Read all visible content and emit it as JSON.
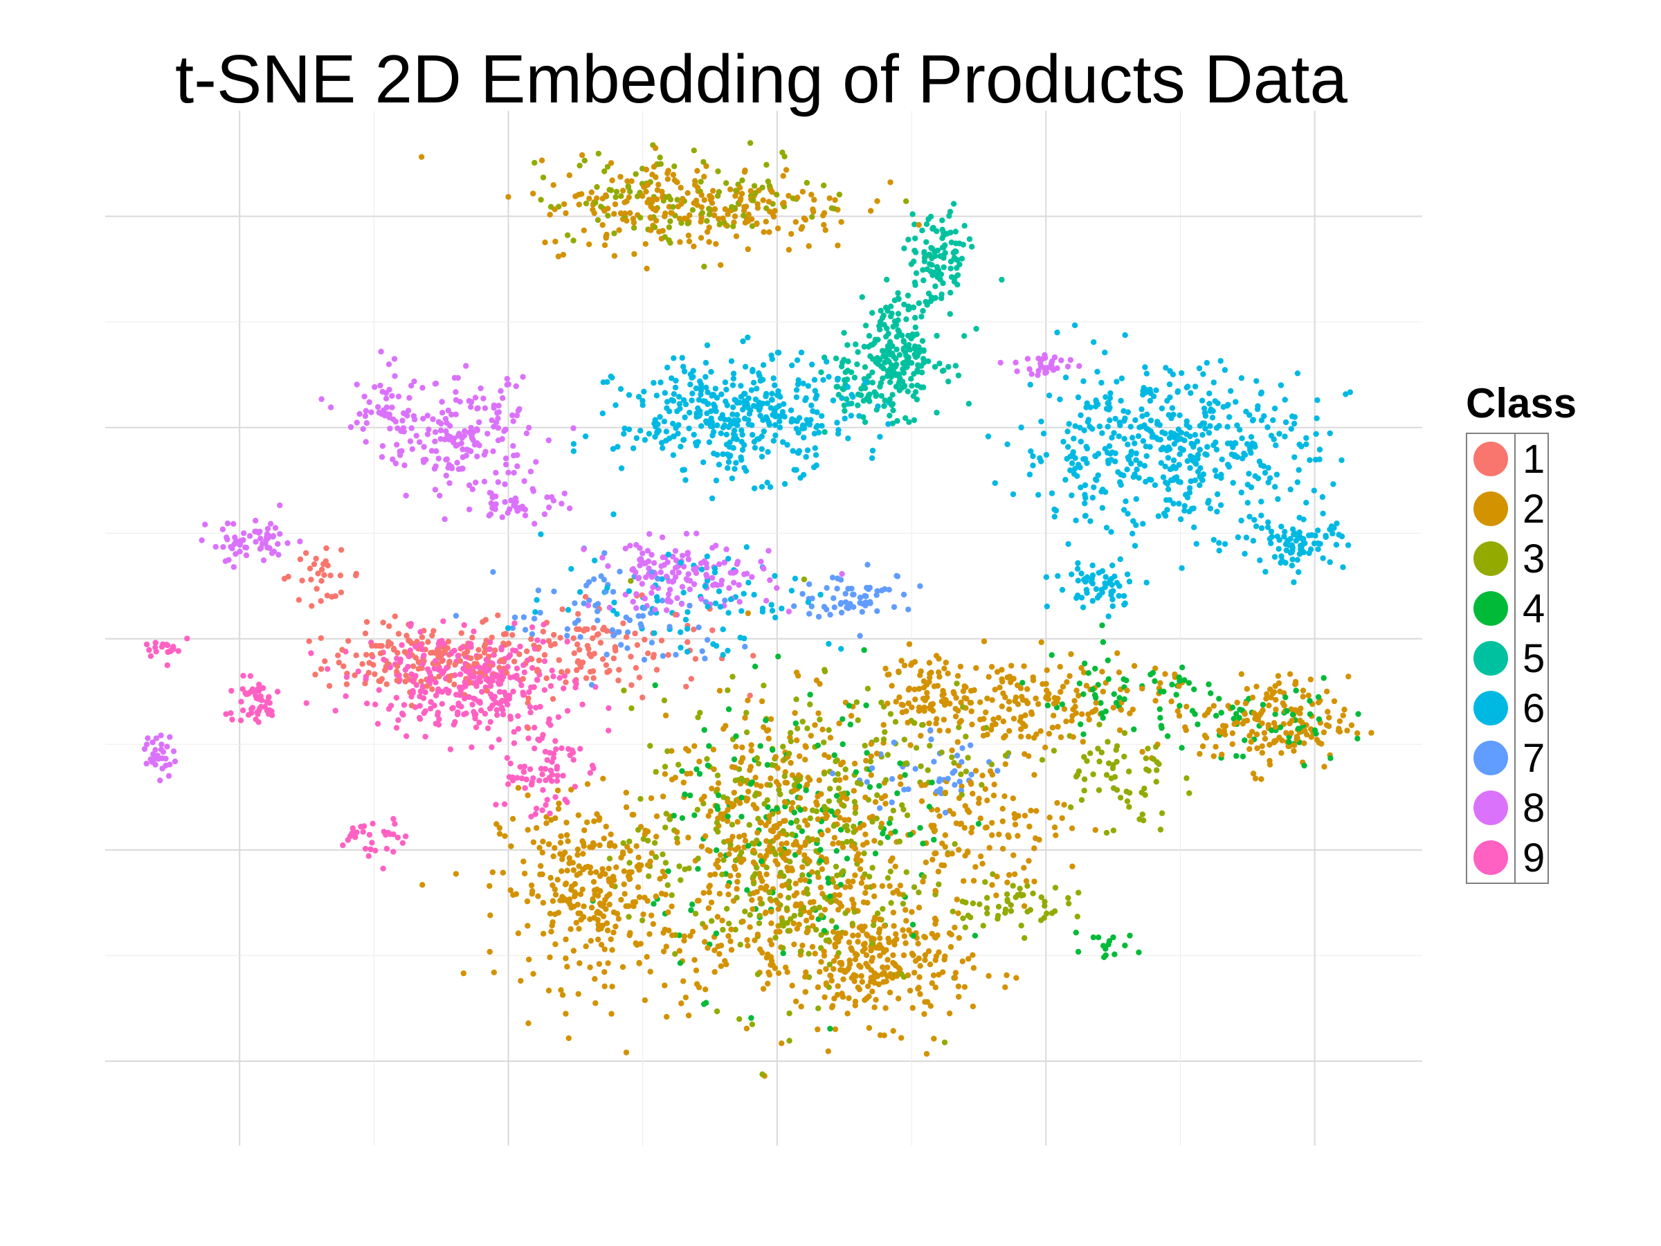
{
  "chart_data": {
    "type": "scatter",
    "title": "t-SNE 2D Embedding of Products Data",
    "xlabel": "",
    "ylabel": "",
    "xlim": [
      -50,
      48
    ],
    "ylim": [
      -48,
      50
    ],
    "grid": true,
    "legend_position": "right",
    "legend_title": "Class",
    "series": [
      {
        "name": "1",
        "color": "#F8766D",
        "clusters": [
          {
            "cx": -26,
            "cy": -2,
            "rx": 7,
            "ry": 3,
            "n": 160
          },
          {
            "cx": -14,
            "cy": -1,
            "rx": 8,
            "ry": 4,
            "n": 120
          },
          {
            "cx": -34,
            "cy": 6,
            "rx": 3,
            "ry": 2,
            "n": 30
          }
        ]
      },
      {
        "name": "2",
        "color": "#D39200",
        "clusters": [
          {
            "cx": 0,
            "cy": -21,
            "rx": 9,
            "ry": 13,
            "n": 520
          },
          {
            "cx": -14,
            "cy": -24,
            "rx": 6,
            "ry": 8,
            "n": 280
          },
          {
            "cx": 8,
            "cy": -31,
            "rx": 6,
            "ry": 5,
            "n": 220
          },
          {
            "cx": 18,
            "cy": -6,
            "rx": 10,
            "ry": 4,
            "n": 200
          },
          {
            "cx": 37,
            "cy": -8,
            "rx": 5,
            "ry": 4,
            "n": 160
          },
          {
            "cx": -6,
            "cy": 41,
            "rx": 11,
            "ry": 4,
            "n": 240
          },
          {
            "cx": 15,
            "cy": -18,
            "rx": 6,
            "ry": 6,
            "n": 120
          },
          {
            "cx": 11,
            "cy": -5,
            "rx": 3,
            "ry": 3,
            "n": 60
          }
        ]
      },
      {
        "name": "3",
        "color": "#93AA00",
        "clusters": [
          {
            "cx": 0,
            "cy": -20,
            "rx": 10,
            "ry": 13,
            "n": 300
          },
          {
            "cx": -6,
            "cy": 42,
            "rx": 11,
            "ry": 4,
            "n": 120
          },
          {
            "cx": 17,
            "cy": -25,
            "rx": 4,
            "ry": 2,
            "n": 50
          },
          {
            "cx": 25,
            "cy": -13,
            "rx": 4,
            "ry": 5,
            "n": 60
          },
          {
            "cx": 10,
            "cy": -10,
            "rx": 8,
            "ry": 6,
            "n": 60
          }
        ]
      },
      {
        "name": "4",
        "color": "#00BA38",
        "clusters": [
          {
            "cx": 2,
            "cy": -19,
            "rx": 10,
            "ry": 12,
            "n": 150
          },
          {
            "cx": 26,
            "cy": -6,
            "rx": 8,
            "ry": 4,
            "n": 60
          },
          {
            "cx": 37,
            "cy": -8,
            "rx": 5,
            "ry": 4,
            "n": 50
          },
          {
            "cx": 24,
            "cy": -29,
            "rx": 3,
            "ry": 1,
            "n": 15
          }
        ]
      },
      {
        "name": "5",
        "color": "#00C19F",
        "clusters": [
          {
            "cx": 9,
            "cy": 27,
            "rx": 3,
            "ry": 5,
            "n": 220
          },
          {
            "cx": 12,
            "cy": 36,
            "rx": 2,
            "ry": 4,
            "n": 100
          },
          {
            "cx": 6,
            "cy": 24,
            "rx": 2,
            "ry": 3,
            "n": 40
          }
        ]
      },
      {
        "name": "6",
        "color": "#00B9E3",
        "clusters": [
          {
            "cx": -3,
            "cy": 21,
            "rx": 8,
            "ry": 5,
            "n": 380
          },
          {
            "cx": 29,
            "cy": 18,
            "rx": 10,
            "ry": 7,
            "n": 480
          },
          {
            "cx": 39,
            "cy": 9,
            "rx": 3,
            "ry": 2,
            "n": 80
          },
          {
            "cx": 24,
            "cy": 5,
            "rx": 3,
            "ry": 2,
            "n": 60
          },
          {
            "cx": -6,
            "cy": 4,
            "rx": 10,
            "ry": 5,
            "n": 80
          }
        ]
      },
      {
        "name": "7",
        "color": "#619CFF",
        "clusters": [
          {
            "cx": 6,
            "cy": 4,
            "rx": 4,
            "ry": 2,
            "n": 60
          },
          {
            "cx": -12,
            "cy": 2,
            "rx": 8,
            "ry": 5,
            "n": 70
          },
          {
            "cx": 12,
            "cy": -13,
            "rx": 6,
            "ry": 3,
            "n": 40
          }
        ]
      },
      {
        "name": "8",
        "color": "#DB72FB",
        "clusters": [
          {
            "cx": -23,
            "cy": 19,
            "rx": 4,
            "ry": 5,
            "n": 160
          },
          {
            "cx": -29,
            "cy": 21,
            "rx": 3,
            "ry": 4,
            "n": 60
          },
          {
            "cx": -39,
            "cy": 9,
            "rx": 3,
            "ry": 2,
            "n": 60
          },
          {
            "cx": -7,
            "cy": 6,
            "rx": 6,
            "ry": 3,
            "n": 140
          },
          {
            "cx": -46,
            "cy": -11,
            "rx": 1,
            "ry": 2,
            "n": 30
          },
          {
            "cx": 20,
            "cy": 26,
            "rx": 2,
            "ry": 1,
            "n": 30
          },
          {
            "cx": -19,
            "cy": 13,
            "rx": 3,
            "ry": 2,
            "n": 40
          }
        ]
      },
      {
        "name": "9",
        "color": "#FF61C3",
        "clusters": [
          {
            "cx": -23,
            "cy": -4,
            "rx": 7,
            "ry": 4,
            "n": 330
          },
          {
            "cx": -18,
            "cy": -12,
            "rx": 3,
            "ry": 5,
            "n": 80
          },
          {
            "cx": -39,
            "cy": -6,
            "rx": 2,
            "ry": 2,
            "n": 50
          },
          {
            "cx": -30,
            "cy": -19,
            "rx": 2,
            "ry": 2,
            "n": 30
          },
          {
            "cx": -45,
            "cy": -1,
            "rx": 2,
            "ry": 1,
            "n": 20
          }
        ]
      }
    ]
  }
}
